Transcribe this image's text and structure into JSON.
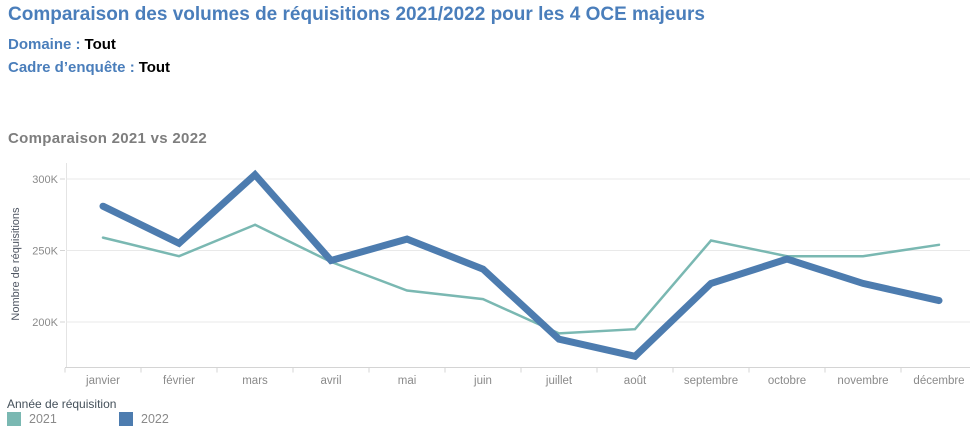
{
  "header": {
    "title": "Comparaison des volumes de réquisitions 2021/2022 pour les 4 OCE majeurs",
    "filters": [
      {
        "label": "Domaine :",
        "value": "Tout"
      },
      {
        "label": "Cadre d’enquête :",
        "value": "Tout"
      }
    ]
  },
  "chart_data": {
    "type": "line",
    "title": "Comparaison 2021 vs 2022",
    "xlabel": "",
    "ylabel": "Nombre de réquisitions",
    "categories": [
      "janvier",
      "février",
      "mars",
      "avril",
      "mai",
      "juin",
      "juillet",
      "août",
      "septembre",
      "octobre",
      "novembre",
      "décembre"
    ],
    "yticks": [
      {
        "value": 300000,
        "label": "300K"
      },
      {
        "value": 250000,
        "label": "250K"
      },
      {
        "value": 200000,
        "label": "200K"
      }
    ],
    "ylim": [
      168000,
      314000
    ],
    "grid": true,
    "legend_position": "bottom-left",
    "series": [
      {
        "name": "2021",
        "color": "#7ab8b2",
        "stroke_width": 2.5,
        "values": [
          259000,
          246000,
          268000,
          242000,
          222000,
          216000,
          192000,
          195000,
          257000,
          246000,
          246000,
          254000
        ]
      },
      {
        "name": "2022",
        "color": "#4d7caf",
        "stroke_width": 7,
        "values": [
          281000,
          255000,
          303000,
          243000,
          258000,
          237000,
          188000,
          176000,
          227000,
          244000,
          227000,
          215000
        ]
      }
    ]
  },
  "legend": {
    "title": "Année de réquisition",
    "items": [
      {
        "label": "2021",
        "color": "#7ab8b2"
      },
      {
        "label": "2022",
        "color": "#4d7caf"
      }
    ]
  },
  "colors": {
    "title_blue": "#4a7ebb",
    "chart_title_gray": "#7e7e7e",
    "axis_label": "#4e5562",
    "tick_label": "#8a8a8a",
    "gridline": "#e9e9e9",
    "axis_line": "#d4d4d4"
  }
}
